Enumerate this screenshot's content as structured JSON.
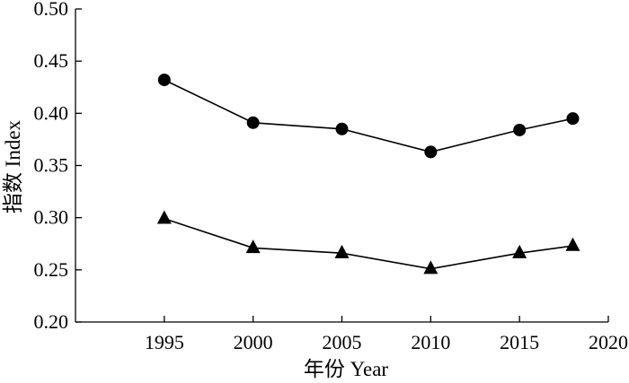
{
  "chart_data": {
    "type": "line",
    "title": "",
    "xlabel": "年份 Year",
    "ylabel": "指数 Index",
    "xlim": [
      1990,
      2020
    ],
    "ylim": [
      0.2,
      0.5
    ],
    "x_ticks": [
      "1995",
      "2000",
      "2005",
      "2010",
      "2015",
      "2020"
    ],
    "x_tick_values": [
      1995,
      2000,
      2005,
      2010,
      2015,
      2020
    ],
    "y_ticks": [
      "0.20",
      "0.25",
      "0.30",
      "0.35",
      "0.40",
      "0.45",
      "0.50"
    ],
    "y_tick_values": [
      0.2,
      0.25,
      0.3,
      0.35,
      0.4,
      0.45,
      0.5
    ],
    "grid": false,
    "legend": "none",
    "x": [
      1995,
      2000,
      2005,
      2010,
      2015,
      2018
    ],
    "series": [
      {
        "marker": "circle",
        "color": "#000000",
        "values": [
          0.432,
          0.391,
          0.385,
          0.363,
          0.384,
          0.395
        ]
      },
      {
        "marker": "triangle",
        "color": "#000000",
        "values": [
          0.299,
          0.271,
          0.266,
          0.251,
          0.266,
          0.273
        ]
      }
    ]
  }
}
